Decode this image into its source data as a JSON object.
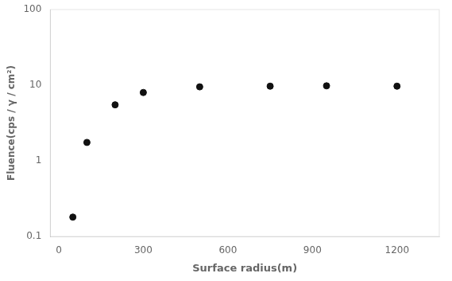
{
  "chart_data": {
    "type": "scatter",
    "x": [
      50,
      100,
      200,
      300,
      500,
      750,
      950,
      1200
    ],
    "values": [
      0.18,
      1.75,
      5.5,
      8.0,
      9.5,
      9.7,
      9.8,
      9.7
    ],
    "xlabel": "Surface radius(m)",
    "ylabel": "Fluence(cps / γ / cm²)",
    "xlim": [
      -30,
      1350
    ],
    "ylim": [
      0.1,
      100
    ],
    "xticks": [
      0,
      300,
      600,
      900,
      1200
    ],
    "yticks": [
      0.1,
      1,
      10,
      100
    ],
    "log": "y",
    "grid": false,
    "color": "#111111",
    "marker": "circle"
  }
}
